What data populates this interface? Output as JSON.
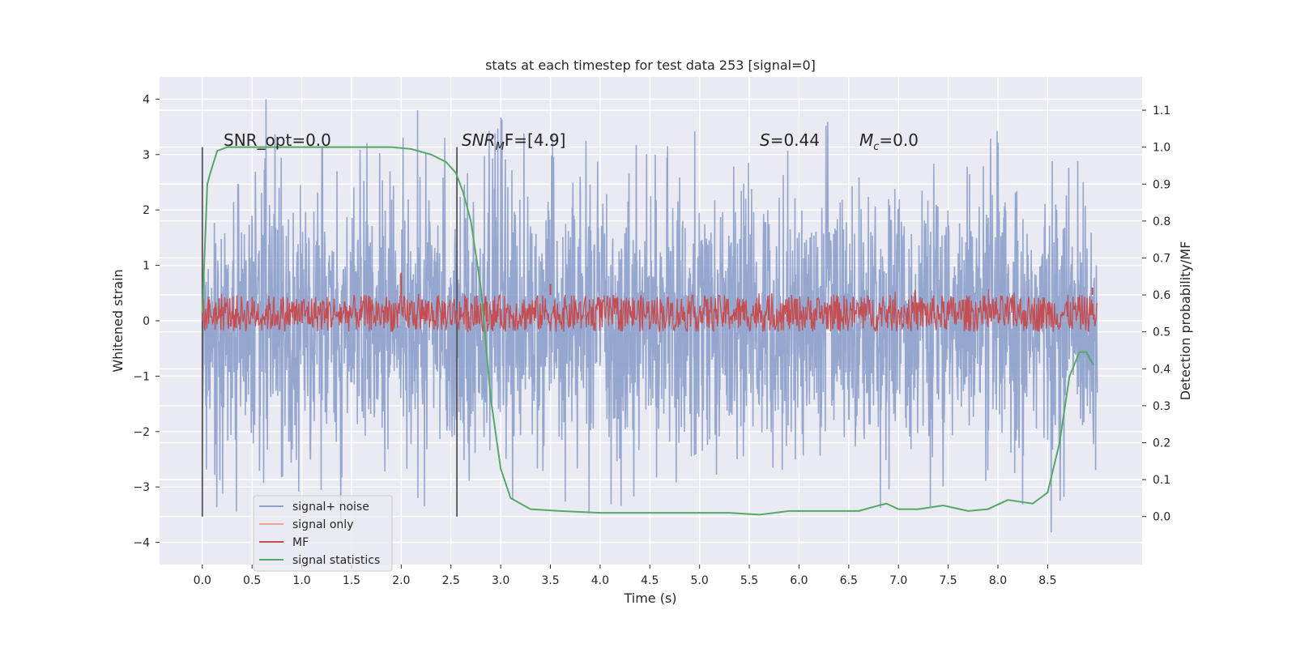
{
  "chart_data": {
    "type": "line",
    "title": "stats at each timestep for test data 253 [signal=0]",
    "xlabel": "Time (s)",
    "ylabel": "Whitened strain",
    "ylabel_right": "Detection probability/MF",
    "xlim": [
      -0.43,
      9.45
    ],
    "ylim": [
      -4.4,
      4.4
    ],
    "ylim_right": [
      -0.13,
      1.19
    ],
    "x_ticks": [
      0.0,
      0.5,
      1.0,
      1.5,
      2.0,
      2.5,
      3.0,
      3.5,
      4.0,
      4.5,
      5.0,
      5.5,
      6.0,
      6.5,
      7.0,
      7.5,
      8.0,
      8.5
    ],
    "x_tick_labels": [
      "0.0",
      "0.5",
      "1.0",
      "1.5",
      "2.0",
      "2.5",
      "3.0",
      "3.5",
      "4.0",
      "4.5",
      "5.0",
      "5.5",
      "6.0",
      "6.5",
      "7.0",
      "7.5",
      "8.0",
      "8.5"
    ],
    "y_ticks": [
      4,
      3,
      2,
      1,
      0,
      -1,
      -2,
      -3,
      -4
    ],
    "y_tick_labels": [
      "4",
      "3",
      "2",
      "1",
      "0",
      "−1",
      "−2",
      "−3",
      "−4"
    ],
    "y2_ticks": [
      1.1,
      1.0,
      0.9,
      0.8,
      0.7,
      0.6,
      0.5,
      0.4,
      0.3,
      0.2,
      0.1,
      0.0
    ],
    "y2_tick_labels": [
      "1.1",
      "1.0",
      "0.9",
      "0.8",
      "0.7",
      "0.6",
      "0.5",
      "0.4",
      "0.3",
      "0.2",
      "0.1",
      "0.0"
    ],
    "grid": true,
    "legend": {
      "placement": "lower-left",
      "entries": [
        {
          "label": "signal+ noise",
          "color": "#8da0cb"
        },
        {
          "label": "signal only",
          "color": "#f0a58a"
        },
        {
          "label": "MF",
          "color": "#c44e52"
        },
        {
          "label": "signal statistics",
          "color": "#55a868"
        }
      ]
    },
    "annotations": {
      "snr_opt": "SNR_opt=0.0",
      "snr_mf_prefix": "SNR",
      "snr_mf_sub": "M",
      "snr_mf_suffix": "F=[4.9]",
      "s_label": "S",
      "s_value": "=0.44",
      "mc_label": "M",
      "mc_sub": "c",
      "mc_value": "=0.0"
    },
    "vertical_markers": [
      0.0,
      2.56
    ],
    "series": [
      {
        "name": "signal+ noise",
        "color": "#8da0cb",
        "axis": "left",
        "x_range": [
          0.0,
          9.0
        ],
        "envelope_typical": [
          -2.3,
          2.3
        ],
        "peak_max": 4.0,
        "peak_min": -4.0
      },
      {
        "name": "signal only",
        "color": "#f0a58a",
        "axis": "left",
        "x": [
          0.0,
          9.0
        ],
        "y": [
          0.0,
          0.0
        ]
      },
      {
        "name": "MF",
        "color": "#c44e52",
        "axis": "right",
        "x_range": [
          0.0,
          9.0
        ],
        "band": [
          0.5,
          0.6
        ],
        "spikes": [
          [
            2.0,
            0.66
          ],
          [
            3.5,
            0.63
          ],
          [
            8.95,
            0.62
          ]
        ]
      },
      {
        "name": "signal statistics",
        "color": "#55a868",
        "axis": "right",
        "x": [
          0.0,
          0.05,
          0.08,
          0.15,
          0.25,
          0.5,
          1.0,
          1.5,
          1.9,
          2.1,
          2.3,
          2.45,
          2.55,
          2.62,
          2.7,
          2.8,
          2.9,
          3.0,
          3.1,
          3.3,
          3.6,
          4.0,
          4.5,
          5.0,
          5.3,
          5.6,
          5.9,
          6.2,
          6.6,
          6.8,
          6.88,
          7.0,
          7.2,
          7.45,
          7.7,
          7.9,
          8.1,
          8.35,
          8.5,
          8.62,
          8.72,
          8.82,
          8.89,
          8.96
        ],
        "y": [
          0.55,
          0.9,
          0.93,
          0.99,
          1.0,
          1.0,
          1.0,
          1.0,
          1.0,
          0.995,
          0.98,
          0.96,
          0.93,
          0.88,
          0.8,
          0.62,
          0.32,
          0.13,
          0.05,
          0.02,
          0.015,
          0.01,
          0.01,
          0.01,
          0.01,
          0.005,
          0.015,
          0.015,
          0.015,
          0.03,
          0.035,
          0.02,
          0.02,
          0.03,
          0.015,
          0.02,
          0.045,
          0.035,
          0.065,
          0.2,
          0.38,
          0.445,
          0.445,
          0.41
        ]
      }
    ]
  }
}
